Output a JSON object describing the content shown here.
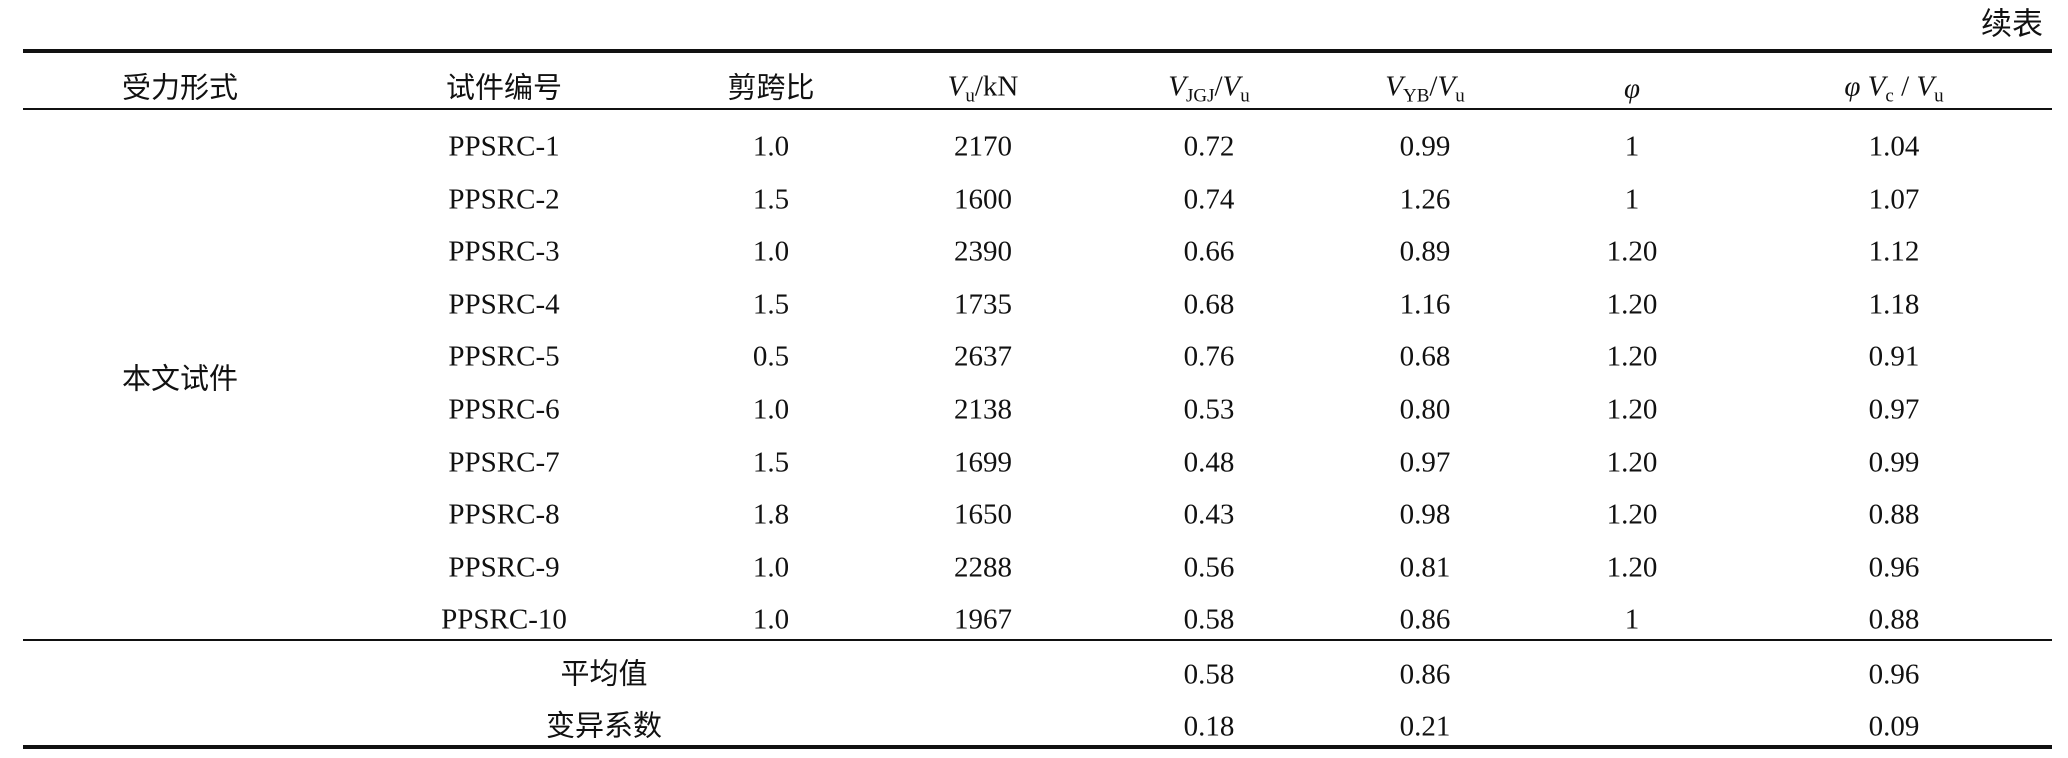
{
  "caption": "续表",
  "headers": [
    [
      {
        "text": "受力形式"
      }
    ],
    [
      {
        "text": "试件编号"
      }
    ],
    [
      {
        "text": "剪跨比"
      }
    ],
    [
      {
        "text": "V",
        "style": "italic"
      },
      {
        "text": "u",
        "style": "sub"
      },
      {
        "text": "/kN"
      }
    ],
    [
      {
        "text": "V",
        "style": "italic"
      },
      {
        "text": "JGJ",
        "style": "sub"
      },
      {
        "text": "/"
      },
      {
        "text": "V",
        "style": "italic"
      },
      {
        "text": "u",
        "style": "sub"
      }
    ],
    [
      {
        "text": "V",
        "style": "italic"
      },
      {
        "text": "YB",
        "style": "sub"
      },
      {
        "text": "/"
      },
      {
        "text": "V",
        "style": "italic"
      },
      {
        "text": "u",
        "style": "sub"
      }
    ],
    [
      {
        "text": "φ",
        "style": "italic"
      }
    ],
    [
      {
        "text": "φ  V",
        "style": "italic"
      },
      {
        "text": "c",
        "style": "sub"
      },
      {
        "text": " / "
      },
      {
        "text": "V",
        "style": "italic"
      },
      {
        "text": "u",
        "style": "sub"
      }
    ]
  ],
  "group": "本文试件",
  "rows": [
    [
      "PPSRC-1",
      "1.0",
      "2170",
      "0.72",
      "0.99",
      "1",
      "1.04"
    ],
    [
      "PPSRC-2",
      "1.5",
      "1600",
      "0.74",
      "1.26",
      "1",
      "1.07"
    ],
    [
      "PPSRC-3",
      "1.0",
      "2390",
      "0.66",
      "0.89",
      "1.20",
      "1.12"
    ],
    [
      "PPSRC-4",
      "1.5",
      "1735",
      "0.68",
      "1.16",
      "1.20",
      "1.18"
    ],
    [
      "PPSRC-5",
      "0.5",
      "2637",
      "0.76",
      "0.68",
      "1.20",
      "0.91"
    ],
    [
      "PPSRC-6",
      "1.0",
      "2138",
      "0.53",
      "0.80",
      "1.20",
      "0.97"
    ],
    [
      "PPSRC-7",
      "1.5",
      "1699",
      "0.48",
      "0.97",
      "1.20",
      "0.99"
    ],
    [
      "PPSRC-8",
      "1.8",
      "1650",
      "0.43",
      "0.98",
      "1.20",
      "0.88"
    ],
    [
      "PPSRC-9",
      "1.0",
      "2288",
      "0.56",
      "0.81",
      "1.20",
      "0.96"
    ],
    [
      "PPSRC-10",
      "1.0",
      "1967",
      "0.58",
      "0.86",
      "1",
      "0.88"
    ]
  ],
  "summary": [
    {
      "label": "平均值",
      "cells": [
        null,
        null,
        null,
        null,
        "0.58",
        "0.86",
        null,
        "0.96"
      ]
    },
    {
      "label": "变异系数",
      "cells": [
        null,
        null,
        null,
        null,
        "0.18",
        "0.21",
        null,
        "0.09"
      ]
    }
  ]
}
